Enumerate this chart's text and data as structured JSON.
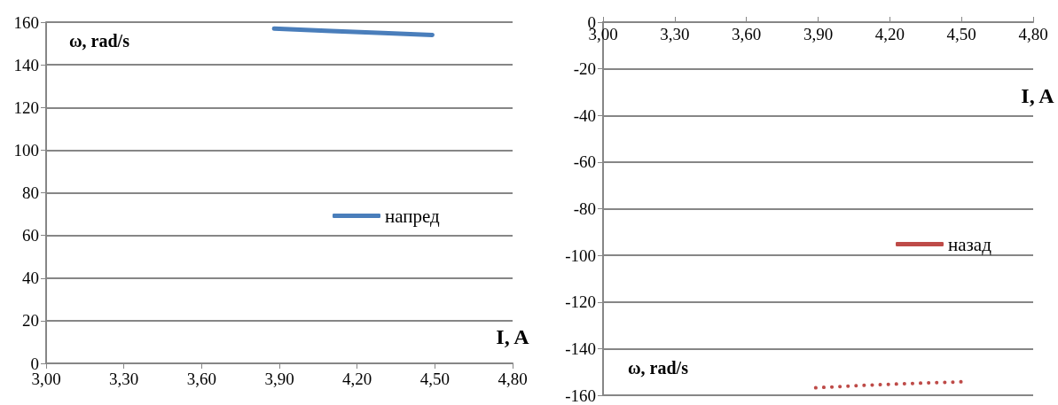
{
  "chart_data": [
    {
      "type": "line",
      "xlabel": "I, A",
      "ylabel": "ω, rad/s",
      "x": [
        3.88,
        4.1,
        4.3,
        4.49
      ],
      "series": [
        {
          "name": "напред",
          "color": "#4a7ebb",
          "values": [
            157,
            155.8,
            154.9,
            154
          ]
        }
      ],
      "xlim": [
        3,
        4.8
      ],
      "xticks": [
        {
          "value": 3,
          "label": "3,00"
        },
        {
          "value": 3.3,
          "label": "3,30"
        },
        {
          "value": 3.6,
          "label": "3,60"
        },
        {
          "value": 3.9,
          "label": "3,90"
        },
        {
          "value": 4.2,
          "label": "4,20"
        },
        {
          "value": 4.5,
          "label": "4,50"
        },
        {
          "value": 4.8,
          "label": "4,80"
        }
      ],
      "ylim": [
        0,
        160
      ],
      "yticks": [
        0,
        20,
        40,
        60,
        80,
        100,
        120,
        140,
        160
      ],
      "grid": "y",
      "legend": "right",
      "marker": "none",
      "line_style": "solid"
    },
    {
      "type": "line",
      "xlabel": "I, A",
      "ylabel": "ω, rad/s",
      "x": [
        3.89,
        4.1,
        4.3,
        4.51
      ],
      "series": [
        {
          "name": "назад",
          "color": "#be4b48",
          "values": [
            -156.8,
            -155.7,
            -154.9,
            -154.2
          ]
        }
      ],
      "xlim": [
        3,
        4.8
      ],
      "xticks": [
        {
          "value": 3,
          "label": "3,00"
        },
        {
          "value": 3.3,
          "label": "3,30"
        },
        {
          "value": 3.6,
          "label": "3,60"
        },
        {
          "value": 3.9,
          "label": "3,90"
        },
        {
          "value": 4.2,
          "label": "4,20"
        },
        {
          "value": 4.5,
          "label": "4,50"
        },
        {
          "value": 4.8,
          "label": "4,80"
        }
      ],
      "ylim": [
        -160,
        0
      ],
      "yticks": [
        -160,
        -140,
        -120,
        -100,
        -80,
        -60,
        -40,
        -20,
        0
      ],
      "grid": "y",
      "legend": "right",
      "marker": "none",
      "line_style": "dotted"
    }
  ]
}
